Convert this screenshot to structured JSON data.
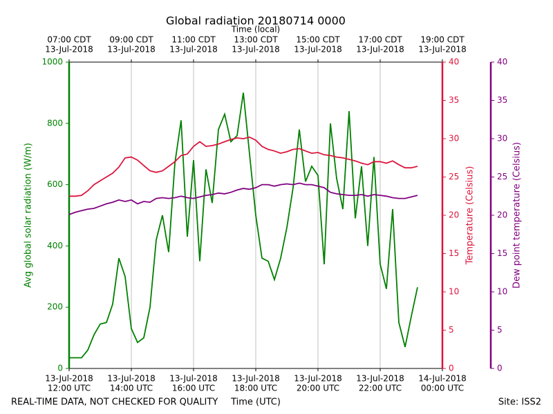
{
  "chart_data": {
    "type": "line",
    "title": "Global radiation 20180714 0000",
    "top_axis_label": "Time (local)",
    "x_axis_label": "Time (UTC)",
    "footer_left": "REAL-TIME DATA, NOT CHECKED FOR QUALITY",
    "footer_right": "Site: ISS2",
    "y_axis_label": "Avg global solar radiation (W/m)",
    "y2_axis_label": "Temperature (Celsius)",
    "y3_axis_label": "Dew point temperature (Celsius)",
    "xlim": [
      12,
      24
    ],
    "xticks": [
      {
        "value": 12,
        "label": [
          "13-Jul-2018",
          "12:00 UTC"
        ]
      },
      {
        "value": 14,
        "label": [
          "13-Jul-2018",
          "14:00 UTC"
        ]
      },
      {
        "value": 16,
        "label": [
          "13-Jul-2018",
          "16:00 UTC"
        ]
      },
      {
        "value": 18,
        "label": [
          "13-Jul-2018",
          "18:00 UTC"
        ]
      },
      {
        "value": 20,
        "label": [
          "13-Jul-2018",
          "20:00 UTC"
        ]
      },
      {
        "value": 22,
        "label": [
          "13-Jul-2018",
          "22:00 UTC"
        ]
      },
      {
        "value": 24,
        "label": [
          "14-Jul-2018",
          "00:00 UTC"
        ]
      }
    ],
    "top_xticks": [
      {
        "value": 12,
        "label": [
          "07:00 CDT",
          "13-Jul-2018"
        ]
      },
      {
        "value": 14,
        "label": [
          "09:00 CDT",
          "13-Jul-2018"
        ]
      },
      {
        "value": 16,
        "label": [
          "11:00 CDT",
          "13-Jul-2018"
        ]
      },
      {
        "value": 18,
        "label": [
          "13:00 CDT",
          "13-Jul-2018"
        ]
      },
      {
        "value": 20,
        "label": [
          "15:00 CDT",
          "13-Jul-2018"
        ]
      },
      {
        "value": 22,
        "label": [
          "17:00 CDT",
          "13-Jul-2018"
        ]
      },
      {
        "value": 24,
        "label": [
          "19:00 CDT",
          "13-Jul-2018"
        ]
      }
    ],
    "grid": true,
    "ylim": [
      0,
      1000
    ],
    "yticks": [
      0,
      200,
      400,
      600,
      800,
      1000
    ],
    "y_color": "#008000",
    "y2lim": [
      0,
      40
    ],
    "y2ticks": [
      0,
      5,
      10,
      15,
      20,
      25,
      30,
      35,
      40
    ],
    "y2_color": "#dc143c",
    "y3lim": [
      0,
      40
    ],
    "y3ticks": [
      0,
      5,
      10,
      15,
      20,
      25,
      30,
      35,
      40
    ],
    "y3_color": "#800080",
    "x": [
      12.0,
      12.2,
      12.4,
      12.6,
      12.8,
      13.0,
      13.2,
      13.4,
      13.6,
      13.8,
      14.0,
      14.2,
      14.4,
      14.6,
      14.8,
      15.0,
      15.2,
      15.4,
      15.6,
      15.8,
      16.0,
      16.2,
      16.4,
      16.6,
      16.8,
      17.0,
      17.2,
      17.4,
      17.6,
      17.8,
      18.0,
      18.2,
      18.4,
      18.6,
      18.8,
      19.0,
      19.2,
      19.4,
      19.6,
      19.8,
      20.0,
      20.2,
      20.4,
      20.6,
      20.8,
      21.0,
      21.2,
      21.4,
      21.6,
      21.8,
      22.0,
      22.2,
      22.4,
      22.6,
      22.8,
      23.0,
      23.2
    ],
    "series": [
      {
        "axis": "y",
        "color": "#008000",
        "values": [
          35,
          35,
          35,
          60,
          110,
          145,
          150,
          210,
          360,
          300,
          130,
          85,
          100,
          200,
          420,
          500,
          380,
          670,
          810,
          430,
          680,
          350,
          650,
          540,
          780,
          830,
          740,
          760,
          900,
          700,
          500,
          360,
          350,
          290,
          360,
          460,
          590,
          780,
          610,
          660,
          630,
          340,
          800,
          620,
          520,
          840,
          490,
          660,
          400,
          690,
          340,
          260,
          520,
          150,
          70,
          170,
          265
        ]
      },
      {
        "axis": "y2",
        "color": "#dc143c",
        "values": [
          22.5,
          22.5,
          22.6,
          23.2,
          24.0,
          24.5,
          25.0,
          25.5,
          26.3,
          27.5,
          27.6,
          27.2,
          26.5,
          25.8,
          25.6,
          25.8,
          26.4,
          27.0,
          27.8,
          28.0,
          29.0,
          29.6,
          29.0,
          29.1,
          29.3,
          29.6,
          29.9,
          30.1,
          30.0,
          30.2,
          29.8,
          29.0,
          28.6,
          28.4,
          28.1,
          28.3,
          28.6,
          28.7,
          28.4,
          28.1,
          28.2,
          27.9,
          27.8,
          27.6,
          27.5,
          27.3,
          27.1,
          26.8,
          26.6,
          27.0,
          27.0,
          26.8,
          27.1,
          26.6,
          26.2,
          26.2,
          26.4
        ]
      },
      {
        "axis": "y3",
        "color": "#800080",
        "values": [
          20.1,
          20.4,
          20.6,
          20.8,
          20.9,
          21.2,
          21.5,
          21.7,
          22.0,
          21.8,
          22.0,
          21.5,
          21.8,
          21.7,
          22.2,
          22.3,
          22.2,
          22.3,
          22.5,
          22.3,
          22.2,
          22.4,
          22.6,
          22.7,
          22.9,
          22.8,
          23.0,
          23.3,
          23.5,
          23.4,
          23.6,
          24.0,
          24.0,
          23.8,
          24.0,
          24.1,
          24.0,
          24.2,
          24.0,
          24.0,
          23.8,
          23.6,
          23.0,
          22.8,
          22.7,
          22.6,
          22.6,
          22.7,
          22.5,
          22.7,
          22.6,
          22.5,
          22.3,
          22.2,
          22.2,
          22.4,
          22.6
        ]
      }
    ]
  }
}
